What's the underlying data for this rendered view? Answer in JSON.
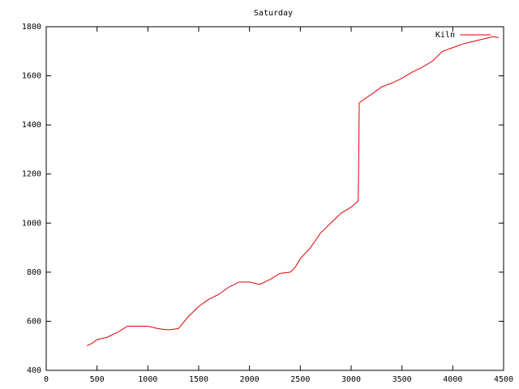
{
  "chart_data": {
    "type": "line",
    "title": "Saturday",
    "x": [
      400,
      450,
      500,
      600,
      700,
      800,
      900,
      1000,
      1100,
      1200,
      1300,
      1400,
      1500,
      1600,
      1700,
      1800,
      1900,
      2000,
      2100,
      2200,
      2300,
      2400,
      2450,
      2500,
      2600,
      2700,
      2800,
      2900,
      3000,
      3070,
      3080,
      3200,
      3300,
      3400,
      3500,
      3600,
      3700,
      3800,
      3900,
      4000,
      4100,
      4200,
      4300,
      4400,
      4450
    ],
    "series": [
      {
        "name": "Kiln",
        "color": "#e00000",
        "values": [
          500,
          510,
          525,
          535,
          555,
          580,
          580,
          580,
          570,
          565,
          570,
          620,
          660,
          690,
          710,
          740,
          760,
          760,
          750,
          770,
          795,
          800,
          820,
          855,
          900,
          960,
          1000,
          1040,
          1065,
          1090,
          1490,
          1525,
          1555,
          1570,
          1590,
          1615,
          1635,
          1660,
          1700,
          1715,
          1730,
          1740,
          1750,
          1760,
          1755
        ]
      }
    ],
    "xlim": [
      0,
      4500
    ],
    "xticks": [
      0,
      500,
      1000,
      1500,
      2000,
      2500,
      3000,
      3500,
      4000,
      4500
    ],
    "ylim": [
      400,
      1800
    ],
    "yticks": [
      400,
      600,
      800,
      1000,
      1200,
      1400,
      1600,
      1800
    ],
    "legend": "top-right",
    "grid": false
  }
}
